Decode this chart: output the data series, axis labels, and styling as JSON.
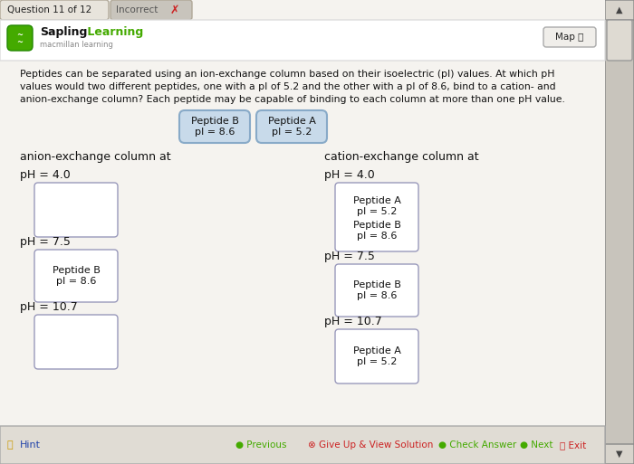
{
  "bg_color": "#d4d0c8",
  "header_bg": "#c8c4bc",
  "content_bg": "#f5f3ef",
  "white": "#ffffff",
  "title_bar_text": "Question 11 of 12",
  "incorrect_text": "Incorrect",
  "brand_name_black": "Sapling",
  "brand_name_green": "Learning",
  "brand_sub": "macmillan learning",
  "map_text": "Map",
  "question_text": "Peptides can be separated using an ion-exchange column based on their isoelectric (pI) values. At which pH\nvalues would two different peptides, one with a pI of 5.2 and the other with a pI of 8.6, bind to a cation- and\nanion-exchange column? Each peptide may be capable of binding to each column at more than one pH value.",
  "peptide_b_label": "Peptide B\npI = 8.6",
  "peptide_a_label": "Peptide A\npI = 5.2",
  "peptide_btn_color": "#c8daea",
  "anion_title": "anion-exchange column at",
  "cation_title": "cation-exchange column at",
  "ph_labels": [
    "pH = 4.0",
    "pH = 7.5",
    "pH = 10.7"
  ],
  "hint_text": "Hint",
  "btn_previous": "Previous",
  "btn_give_up": "Give Up & View Solution",
  "btn_check": "Check Answer",
  "btn_next": "Next",
  "btn_exit": "Exit",
  "green_color": "#44aa00",
  "red_color": "#cc2222",
  "blue_color": "#2244aa",
  "dark_text": "#222222",
  "box_edge": "#9999bb"
}
